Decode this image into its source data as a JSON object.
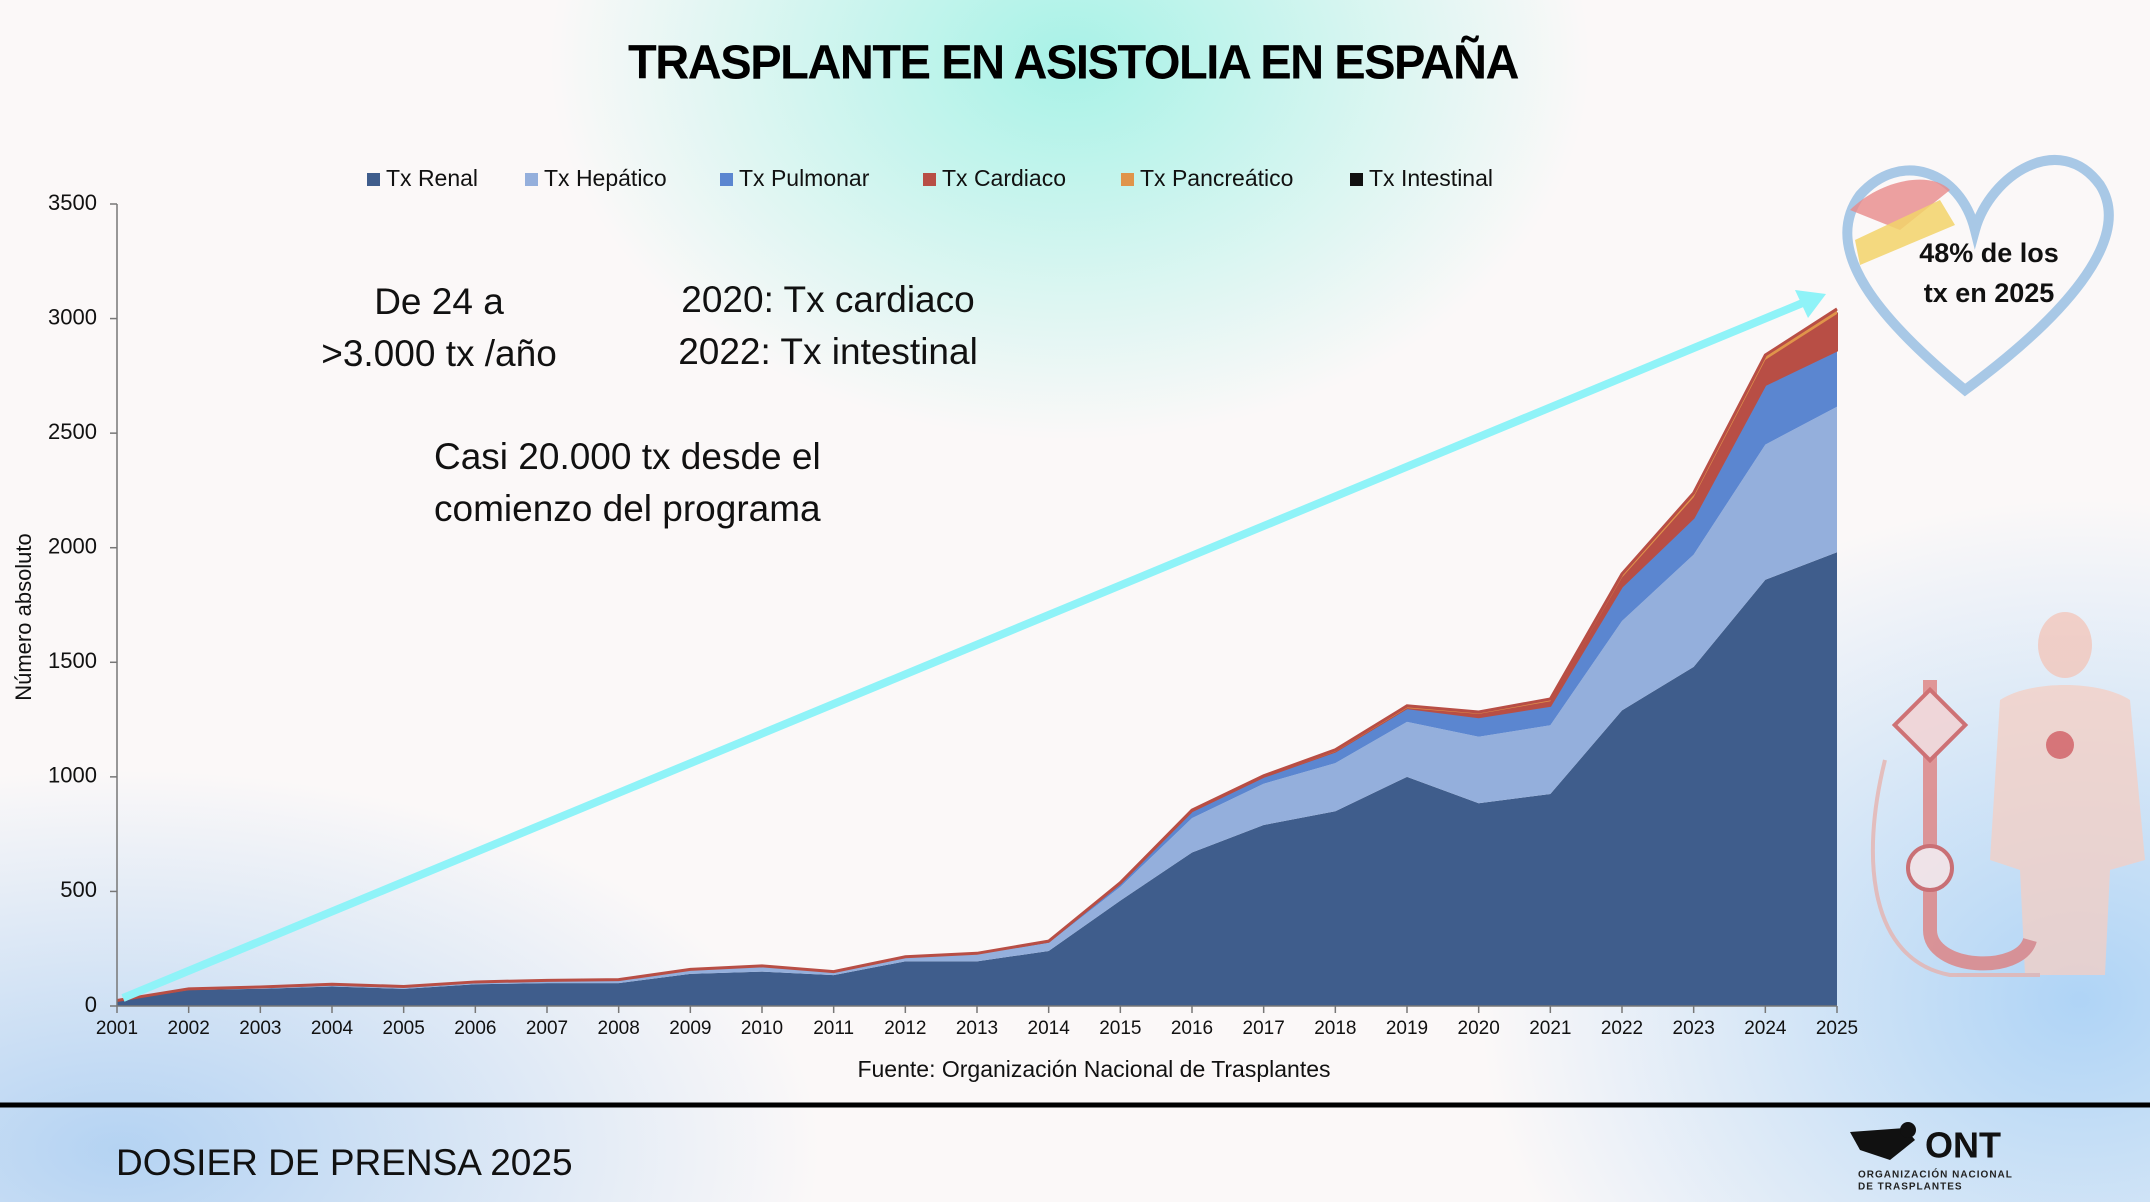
{
  "chart_data": {
    "type": "stacked_area",
    "title": "TRASPLANTE EN ASISTOLIA EN ESPAÑA",
    "y_label": "Número absoluto",
    "source": "Fuente: Organización Nacional de Trasplantes",
    "annotations": [
      "De 24 a",
      ">3.000 tx /año",
      "2020: Tx cardiaco",
      "2022: Tx intestinal",
      "Casi 20.000 tx desde el",
      "comienzo del programa",
      "48% de los",
      "tx en 2025"
    ],
    "categories": [
      "2001",
      "2002",
      "2003",
      "2004",
      "2005",
      "2006",
      "2007",
      "2008",
      "2009",
      "2010",
      "2011",
      "2012",
      "2013",
      "2014",
      "2015",
      "2016",
      "2017",
      "2018",
      "2019",
      "2020",
      "2021",
      "2022",
      "2023",
      "2024",
      "2025"
    ],
    "series": [
      {
        "name": "Tx Renal",
        "color": "#3f5d8c",
        "values": [
          20,
          70,
          75,
          85,
          75,
          95,
          100,
          100,
          140,
          150,
          135,
          195,
          195,
          240,
          460,
          670,
          790,
          850,
          1000,
          885,
          925,
          1290,
          1480,
          1860,
          1980
        ]
      },
      {
        "name": "Tx Hepático",
        "color": "#94afdc",
        "values": [
          4,
          5,
          8,
          10,
          10,
          10,
          12,
          15,
          20,
          25,
          15,
          20,
          30,
          35,
          60,
          150,
          180,
          210,
          240,
          290,
          300,
          390,
          490,
          590,
          635
        ]
      },
      {
        "name": "Tx Pulmonar",
        "color": "#5b86d0",
        "values": [
          0,
          0,
          0,
          0,
          0,
          0,
          0,
          0,
          0,
          0,
          0,
          0,
          5,
          8,
          15,
          30,
          30,
          50,
          60,
          85,
          85,
          150,
          160,
          260,
          245
        ]
      },
      {
        "name": "Tx Cardiaco",
        "color": "#b84e45",
        "values": [
          0,
          0,
          0,
          0,
          0,
          0,
          0,
          0,
          0,
          0,
          0,
          0,
          0,
          0,
          0,
          0,
          0,
          0,
          0,
          15,
          20,
          40,
          90,
          110,
          160
        ]
      },
      {
        "name": "Tx Pancreático",
        "color": "#e0944a",
        "values": [
          0,
          0,
          0,
          0,
          0,
          0,
          0,
          0,
          0,
          0,
          0,
          0,
          0,
          0,
          3,
          5,
          5,
          8,
          10,
          8,
          10,
          15,
          18,
          20,
          20
        ]
      },
      {
        "name": "Tx Intestinal",
        "color": "#111111",
        "values": [
          0,
          0,
          0,
          0,
          0,
          0,
          0,
          0,
          0,
          0,
          0,
          0,
          0,
          0,
          0,
          0,
          0,
          0,
          0,
          0,
          0,
          1,
          1,
          1,
          2
        ]
      }
    ],
    "ylim": [
      0,
      3500
    ],
    "yticks": [
      0,
      500,
      1000,
      1500,
      2000,
      2500,
      3000,
      3500
    ],
    "legend": "top"
  },
  "footer": {
    "text": "DOSIER DE PRENSA 2025",
    "logo": "ONT",
    "logo_sub1": "ORGANIZACIÓN NACIONAL",
    "logo_sub2": "DE TRASPLANTES"
  }
}
